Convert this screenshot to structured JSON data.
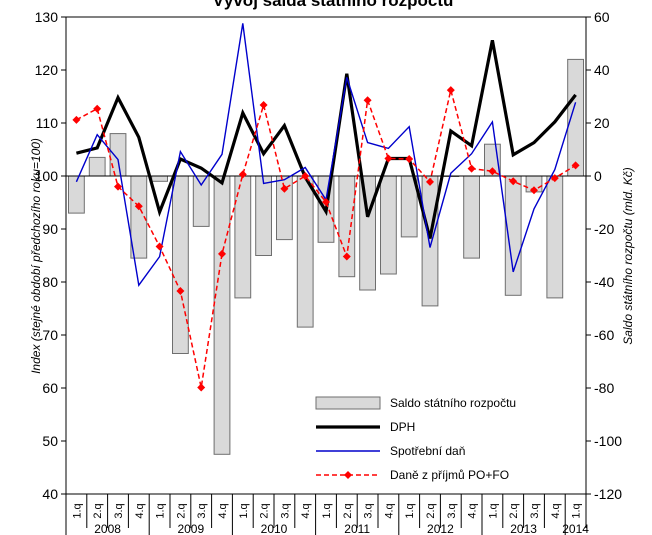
{
  "chart_data": {
    "type": "bar",
    "title": "Vývoj salda státního rozpočtu",
    "ylabel": "Index (stejné období předchozího roku=100)",
    "y2label": "Saldo státního rozpočtu (mld. Kč)",
    "ylim": [
      40,
      130
    ],
    "y2lim": [
      -120,
      60
    ],
    "yticks": [
      "40",
      "50",
      "60",
      "70",
      "80",
      "90",
      "100",
      "110",
      "120",
      "130"
    ],
    "y2ticks": [
      "-120",
      "-100",
      "-80",
      "-60",
      "-40",
      "-20",
      "0",
      "20",
      "40",
      "60"
    ],
    "categories": [
      "1.q",
      "2.q",
      "3.q",
      "4.q",
      "1.q",
      "2.q",
      "3.q",
      "4.q",
      "1.q",
      "2.q",
      "3.q",
      "4.q",
      "1.q",
      "2.q",
      "3.q",
      "4.q",
      "1.q",
      "2.q",
      "3.q",
      "4.q",
      "1.q",
      "2.q",
      "3.q",
      "4.q",
      "1.q"
    ],
    "years": [
      "2008",
      "2009",
      "2010",
      "2011",
      "2012",
      "2013",
      "2014"
    ],
    "grid": false,
    "legend_position": "bottom-right",
    "series": [
      {
        "name": "Saldo státního rozpočtu",
        "kind": "bar",
        "axis": "right",
        "color": "#d9d9d9",
        "values": [
          -14,
          7,
          16,
          -31,
          -2,
          -67,
          -19,
          -105,
          -46,
          -30,
          -24,
          -57,
          -25,
          -38,
          -43,
          -37,
          -23,
          -49,
          0,
          -31,
          12,
          -45,
          -6,
          -46,
          44
        ]
      },
      {
        "name": "DPH",
        "kind": "line",
        "axis": "left",
        "color": "#000000",
        "values": [
          104.3,
          105.3,
          114.8,
          107.3,
          93.2,
          103.2,
          101.5,
          98.7,
          111.9,
          104.2,
          109.5,
          99.8,
          93.3,
          119.3,
          92.3,
          103.3,
          103.3,
          88.2,
          108.5,
          105.7,
          125.6,
          104.0,
          106.3,
          110.2,
          115.3
        ]
      },
      {
        "name": "Spotřební daň",
        "kind": "line",
        "axis": "left",
        "color": "#0000cc",
        "values": [
          98.9,
          107.8,
          103.1,
          79.4,
          84.8,
          104.6,
          98.3,
          104.1,
          128.8,
          98.6,
          99.3,
          101.6,
          95.5,
          118.6,
          106.3,
          105.2,
          109.3,
          86.5,
          100.5,
          104.2,
          110.2,
          81.9,
          93.8,
          101.2,
          113.9
        ]
      },
      {
        "name": "Daně z příjmů  PO+FO",
        "kind": "line",
        "axis": "left",
        "color": "#ff0000",
        "values": [
          110.6,
          112.7,
          98.0,
          94.3,
          86.7,
          78.3,
          60.1,
          85.3,
          100.3,
          113.4,
          97.6,
          100.0,
          95.1,
          84.8,
          114.3,
          103.3,
          103.2,
          98.9,
          116.2,
          101.4,
          100.9,
          99.0,
          97.3,
          99.6,
          102.0
        ]
      }
    ]
  }
}
